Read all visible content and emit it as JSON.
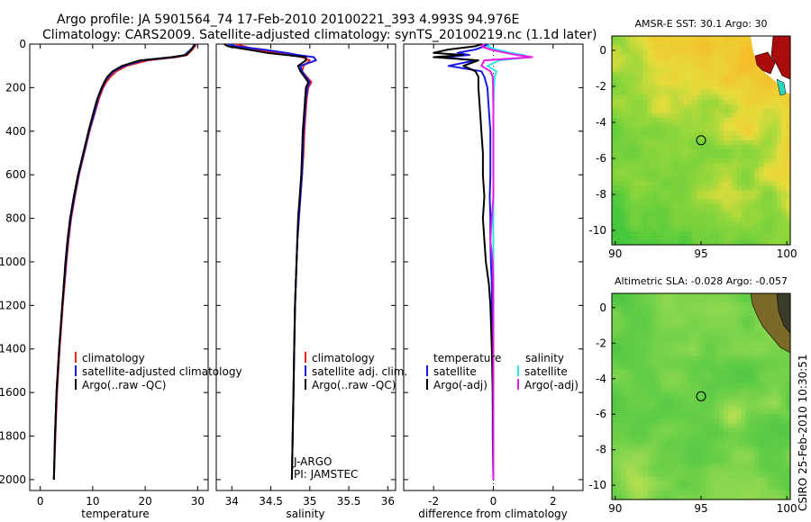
{
  "header": {
    "line1": "Argo profile: JA 5901564_74 17-Feb-2010 20100221_393 4.993S 94.976E",
    "line2": "Climatology: CARS2009. Satellite-adjusted climatology: synTS_20100219.nc (1.1d later)"
  },
  "side_label": "CSIRO 25-Feb-2010 10:30:51",
  "colors": {
    "climatology": "#e8231e",
    "satellite": "#1a1ae6",
    "argo": "#000000",
    "sat_sal": "#2ee6e6",
    "argo_sal": "#e61ae6"
  },
  "chart_data": [
    {
      "type": "line",
      "id": "temperature",
      "xlabel": "temperature",
      "ylabel": "",
      "xlim": [
        -2,
        32
      ],
      "ylim": [
        2050,
        0
      ],
      "xticks": [
        "0",
        "10",
        "20",
        "30"
      ],
      "yticks": [
        "0",
        "200",
        "400",
        "600",
        "800",
        "1000",
        "1200",
        "1400",
        "1600",
        "1800",
        "2000"
      ],
      "legend": [
        "climatology",
        "satellite-adjusted climatology",
        "Argo(..raw -QC)"
      ],
      "depth": [
        0,
        10,
        25,
        50,
        60,
        75,
        100,
        125,
        150,
        175,
        200,
        250,
        300,
        400,
        500,
        600,
        700,
        800,
        900,
        1000,
        1200,
        1400,
        1600,
        1800,
        2000
      ],
      "series": [
        {
          "name": "climatology",
          "values": [
            29.8,
            29.5,
            29.0,
            28.0,
            26.0,
            20.5,
            16.5,
            14.5,
            13.4,
            12.6,
            12.0,
            11.2,
            10.6,
            9.4,
            8.4,
            7.4,
            6.6,
            5.9,
            5.4,
            5.0,
            4.3,
            3.7,
            3.2,
            2.9,
            2.6
          ]
        },
        {
          "name": "satellite-adjusted climatology",
          "values": [
            29.6,
            29.3,
            28.7,
            27.5,
            25.5,
            19.5,
            16.0,
            14.0,
            13.0,
            12.3,
            11.8,
            11.0,
            10.5,
            9.3,
            8.3,
            7.3,
            6.5,
            5.8,
            5.3,
            4.9,
            4.2,
            3.6,
            3.1,
            2.8,
            2.6
          ]
        },
        {
          "name": "Argo(..raw -QC)",
          "values": [
            29.4,
            29.2,
            28.8,
            27.8,
            25.0,
            19.0,
            15.6,
            13.8,
            12.8,
            12.2,
            11.7,
            10.9,
            10.3,
            9.2,
            8.2,
            7.2,
            6.4,
            5.7,
            5.2,
            4.8,
            4.2,
            3.6,
            3.1,
            2.8,
            2.6
          ]
        }
      ]
    },
    {
      "type": "line",
      "id": "salinity",
      "xlabel": "salinity",
      "xlim": [
        33.8,
        36.1
      ],
      "ylim": [
        2050,
        0
      ],
      "xticks": [
        "34",
        "34.5",
        "35",
        "35.5",
        "36"
      ],
      "legend": [
        "climatology",
        "satellite adj. clim.",
        "Argo(..raw -QC)"
      ],
      "annotations": [
        "J-ARGO",
        "PI: JAMSTEC"
      ],
      "depth": [
        0,
        10,
        25,
        40,
        50,
        60,
        75,
        100,
        125,
        150,
        175,
        200,
        250,
        300,
        400,
        500,
        600,
        700,
        800,
        900,
        1000,
        1200,
        1400,
        1600,
        1800,
        2000
      ],
      "series": [
        {
          "name": "climatology",
          "values": [
            34.05,
            34.15,
            34.3,
            34.55,
            34.75,
            34.9,
            35.0,
            34.92,
            34.9,
            34.96,
            35.02,
            34.98,
            34.96,
            34.95,
            34.93,
            34.92,
            34.9,
            34.88,
            34.86,
            34.84,
            34.83,
            34.81,
            34.8,
            34.79,
            34.78,
            34.77
          ]
        },
        {
          "name": "satellite adj. clim.",
          "values": [
            33.95,
            34.05,
            34.4,
            34.7,
            34.85,
            35.05,
            35.08,
            34.88,
            34.9,
            34.95,
            35.0,
            34.97,
            34.95,
            34.94,
            34.92,
            34.91,
            34.9,
            34.88,
            34.86,
            34.84,
            34.83,
            34.81,
            34.8,
            34.79,
            34.78,
            34.77
          ]
        },
        {
          "name": "Argo(..raw -QC)",
          "values": [
            33.9,
            33.95,
            34.2,
            34.45,
            34.7,
            34.95,
            34.95,
            34.85,
            34.88,
            34.93,
            34.98,
            34.95,
            34.94,
            34.93,
            34.91,
            34.9,
            34.89,
            34.87,
            34.85,
            34.84,
            34.83,
            34.81,
            34.8,
            34.79,
            34.78,
            34.77
          ]
        }
      ]
    },
    {
      "type": "line",
      "id": "difference",
      "xlabel": "difference from climatology",
      "xlim": [
        -3,
        3
      ],
      "ylim": [
        2050,
        0
      ],
      "xticks": [
        "-2",
        "0",
        "2"
      ],
      "legend_temperature_title": "temperature",
      "legend_salinity_title": "salinity",
      "legend_temperature": [
        "satellite",
        "Argo(-adj)"
      ],
      "legend_salinity": [
        "satellite",
        "Argo(-adj)"
      ],
      "depth": [
        0,
        10,
        25,
        40,
        50,
        60,
        75,
        100,
        125,
        150,
        200,
        300,
        400,
        500,
        600,
        700,
        800,
        900,
        1000,
        1100,
        1200,
        1400,
        1600,
        1800,
        2000
      ],
      "series": [
        {
          "name": "temperature satellite",
          "values": [
            -0.2,
            -0.3,
            -0.6,
            -1.2,
            -0.8,
            -1.7,
            -0.6,
            -1.5,
            -0.4,
            -0.3,
            -0.2,
            -0.15,
            -0.1,
            -0.1,
            -0.1,
            -0.12,
            -0.1,
            -0.1,
            -0.08,
            -0.05,
            -0.05,
            -0.03,
            -0.02,
            -0.02,
            0.0
          ]
        },
        {
          "name": "temperature Argo(-adj)",
          "values": [
            -0.4,
            -0.6,
            -1.5,
            -2.0,
            -1.0,
            -2.0,
            -0.5,
            -1.0,
            -0.6,
            -0.5,
            -0.5,
            -0.45,
            -0.4,
            -0.35,
            -0.35,
            -0.3,
            -0.35,
            -0.3,
            -0.25,
            -0.15,
            -0.1,
            -0.05,
            -0.02,
            -0.01,
            0.0
          ]
        },
        {
          "name": "salinity satellite",
          "values": [
            -0.1,
            -0.2,
            0.1,
            0.6,
            1.0,
            1.2,
            0.2,
            -0.2,
            0.1,
            0.05,
            0.02,
            0.0,
            0.0,
            0.0,
            0.0,
            0.0,
            0.0,
            0.0,
            0.0,
            0.0,
            0.0,
            0.0,
            0.0,
            0.0,
            0.0
          ]
        },
        {
          "name": "salinity Argo(-adj)",
          "values": [
            -0.3,
            -0.4,
            -0.1,
            0.4,
            0.8,
            1.3,
            -0.3,
            -0.4,
            -0.1,
            -0.02,
            -0.01,
            0.0,
            0.0,
            0.0,
            0.0,
            0.0,
            -0.05,
            -0.1,
            -0.02,
            0.0,
            0.0,
            0.0,
            0.0,
            0.0,
            0.0
          ]
        }
      ]
    },
    {
      "type": "heatmap",
      "id": "sst_map",
      "title": "AMSR-E SST: 30.1  Argo: 30",
      "xlim": [
        89.8,
        100.2
      ],
      "ylim": [
        -10.8,
        0.8
      ],
      "xticks": [
        "90",
        "95",
        "100"
      ],
      "yticks": [
        "0",
        "-2",
        "-4",
        "-6",
        "-8",
        "-10"
      ],
      "marker": {
        "lon": 95.0,
        "lat": -4.99
      }
    },
    {
      "type": "heatmap",
      "id": "sla_map",
      "title": "Altimetric SLA: -0.028  Argo: -0.057",
      "xlim": [
        89.8,
        100.2
      ],
      "ylim": [
        -10.8,
        0.8
      ],
      "xticks": [
        "90",
        "95",
        "100"
      ],
      "yticks": [
        "0",
        "-2",
        "-4",
        "-6",
        "-8",
        "-10"
      ],
      "marker": {
        "lon": 95.0,
        "lat": -4.99
      }
    }
  ]
}
